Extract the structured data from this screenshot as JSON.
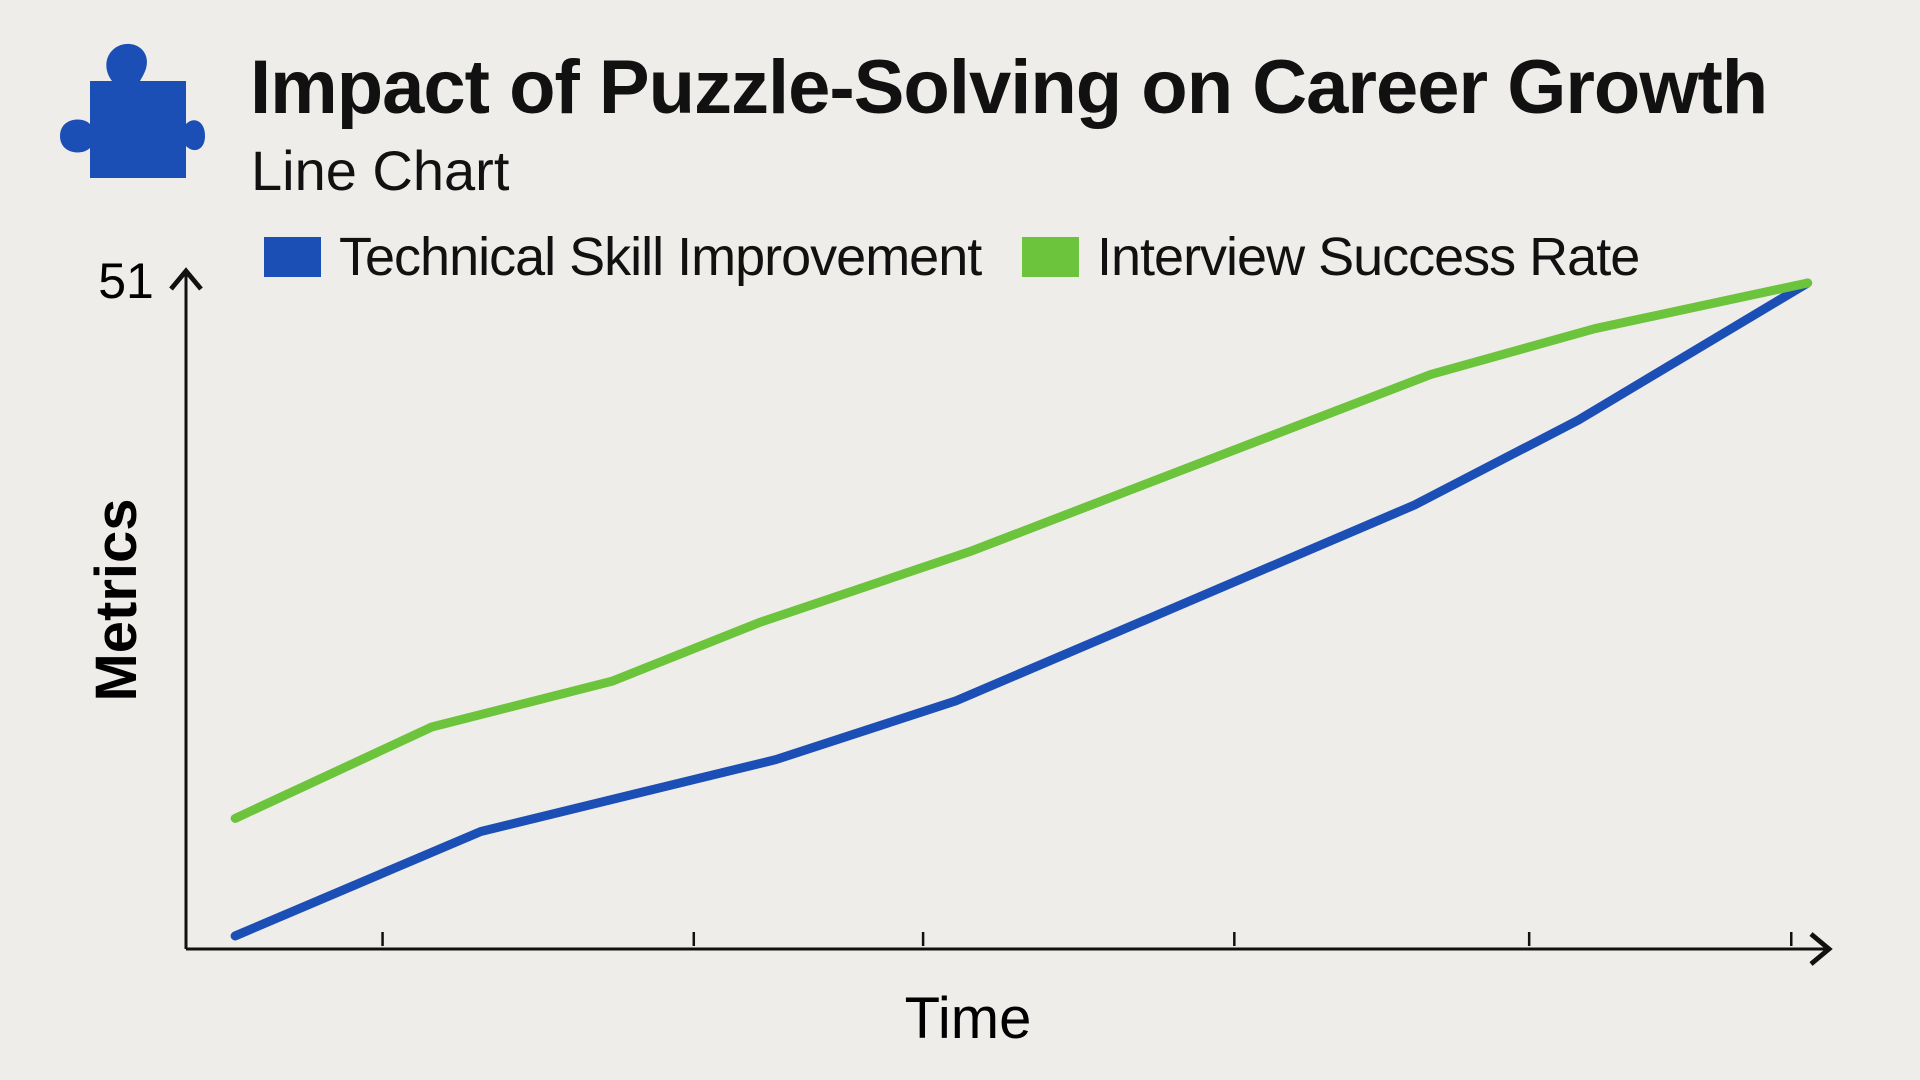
{
  "header": {
    "title": "Impact of Puzzle-Solving on Career Growth",
    "subtitle": "Line Chart",
    "logo_icon": "puzzle-piece-icon",
    "logo_color": "#1b4fb5"
  },
  "chart_data": {
    "type": "line",
    "title": "Impact of Puzzle-Solving on Career Growth",
    "subtitle": "Line Chart",
    "xlabel": "Time",
    "ylabel": "Metrics",
    "y_tick_labels": [
      "51"
    ],
    "ylim": [
      0,
      51
    ],
    "xlim": [
      0,
      10
    ],
    "x_ticks": [
      1.2,
      3.1,
      4.5,
      6.4,
      8.2,
      9.8
    ],
    "grid": false,
    "legend_placement": "top",
    "series": [
      {
        "name": "Technical Skill Improvement",
        "color": "#1b4fb5",
        "x": [
          0.3,
          1.8,
          3.6,
          4.7,
          7.5,
          8.5,
          9.9
        ],
        "values": [
          1,
          9,
          14.5,
          19,
          34,
          40.5,
          51
        ]
      },
      {
        "name": "Interview Success Rate",
        "color": "#6cc43c",
        "x": [
          0.3,
          1.5,
          2.6,
          3.5,
          4.8,
          7.6,
          8.6,
          9.9
        ],
        "values": [
          10,
          17,
          20.5,
          25,
          30.5,
          44,
          47.5,
          51
        ]
      }
    ]
  }
}
